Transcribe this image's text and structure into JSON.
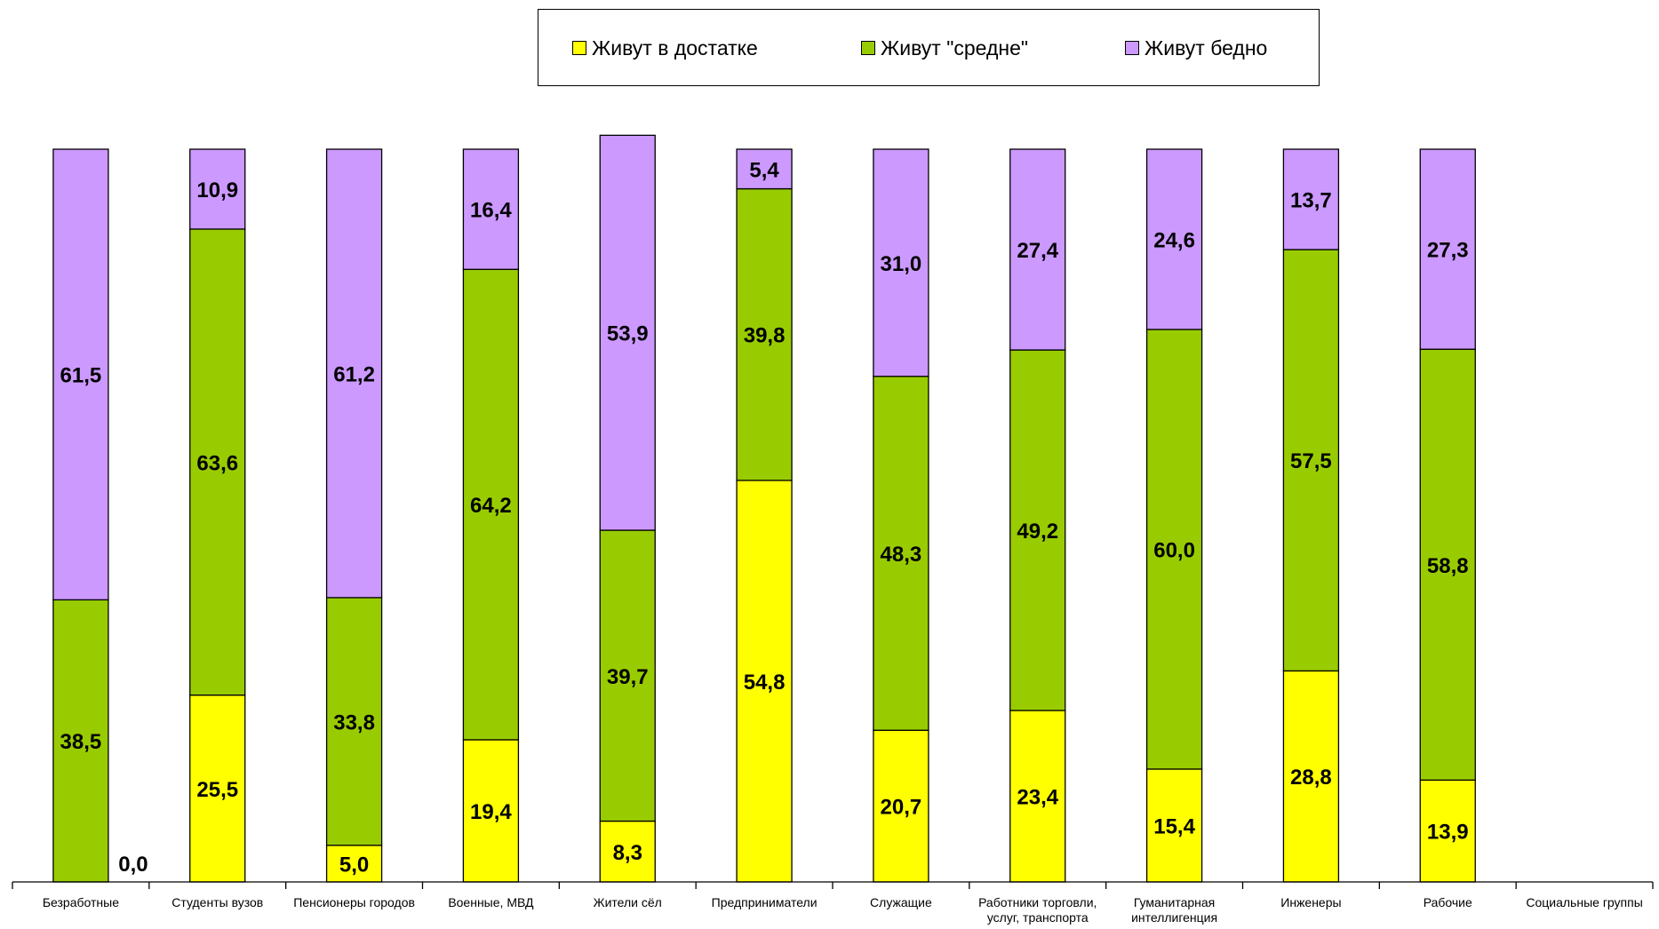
{
  "chart_data": {
    "type": "bar",
    "stacked": true,
    "categories": [
      "Безработные",
      "Студенты вузов",
      "Пенсионеры городов",
      "Военные, МВД",
      "Жители сёл",
      "Предприниматели",
      "Служащие",
      "Работники торговли,\nуслуг, транспорта",
      "Гуманитарная\nинтеллигенция",
      "Инженеры",
      "Рабочие",
      "Социальные группы"
    ],
    "series": [
      {
        "name": "Живут в достатке",
        "color": "#FFFF00",
        "values": [
          0.0,
          25.5,
          5.0,
          19.4,
          8.3,
          54.8,
          20.7,
          23.4,
          15.4,
          28.8,
          13.9,
          null
        ]
      },
      {
        "name": "Живут \"средне\"",
        "color": "#99CC00",
        "values": [
          38.5,
          63.6,
          33.8,
          64.2,
          39.7,
          39.8,
          48.3,
          49.2,
          60.0,
          57.5,
          58.8,
          null
        ]
      },
      {
        "name": "Живут бедно",
        "color": "#CC99FF",
        "values": [
          61.5,
          10.9,
          61.2,
          16.4,
          53.9,
          5.4,
          31.0,
          27.4,
          24.6,
          13.7,
          27.3,
          null
        ]
      }
    ],
    "data_labels": [
      [
        "0,0",
        "25,5",
        "5,0",
        "19,4",
        "8,3",
        "54,8",
        "20,7",
        "23,4",
        "15,4",
        "28,8",
        "13,9",
        null
      ],
      [
        "38,5",
        "63,6",
        "33,8",
        "64,2",
        "39,7",
        "39,8",
        "48,3",
        "49,2",
        "60,0",
        "57,5",
        "58,8",
        null
      ],
      [
        "61,5",
        "10,9",
        "61,2",
        "16,4",
        "53,9",
        "5,4",
        "31,0",
        "27,4",
        "24,6",
        "13,7",
        "27,3",
        null
      ]
    ],
    "ylim": [
      0,
      100
    ],
    "grid": false,
    "legend": "top-center"
  }
}
